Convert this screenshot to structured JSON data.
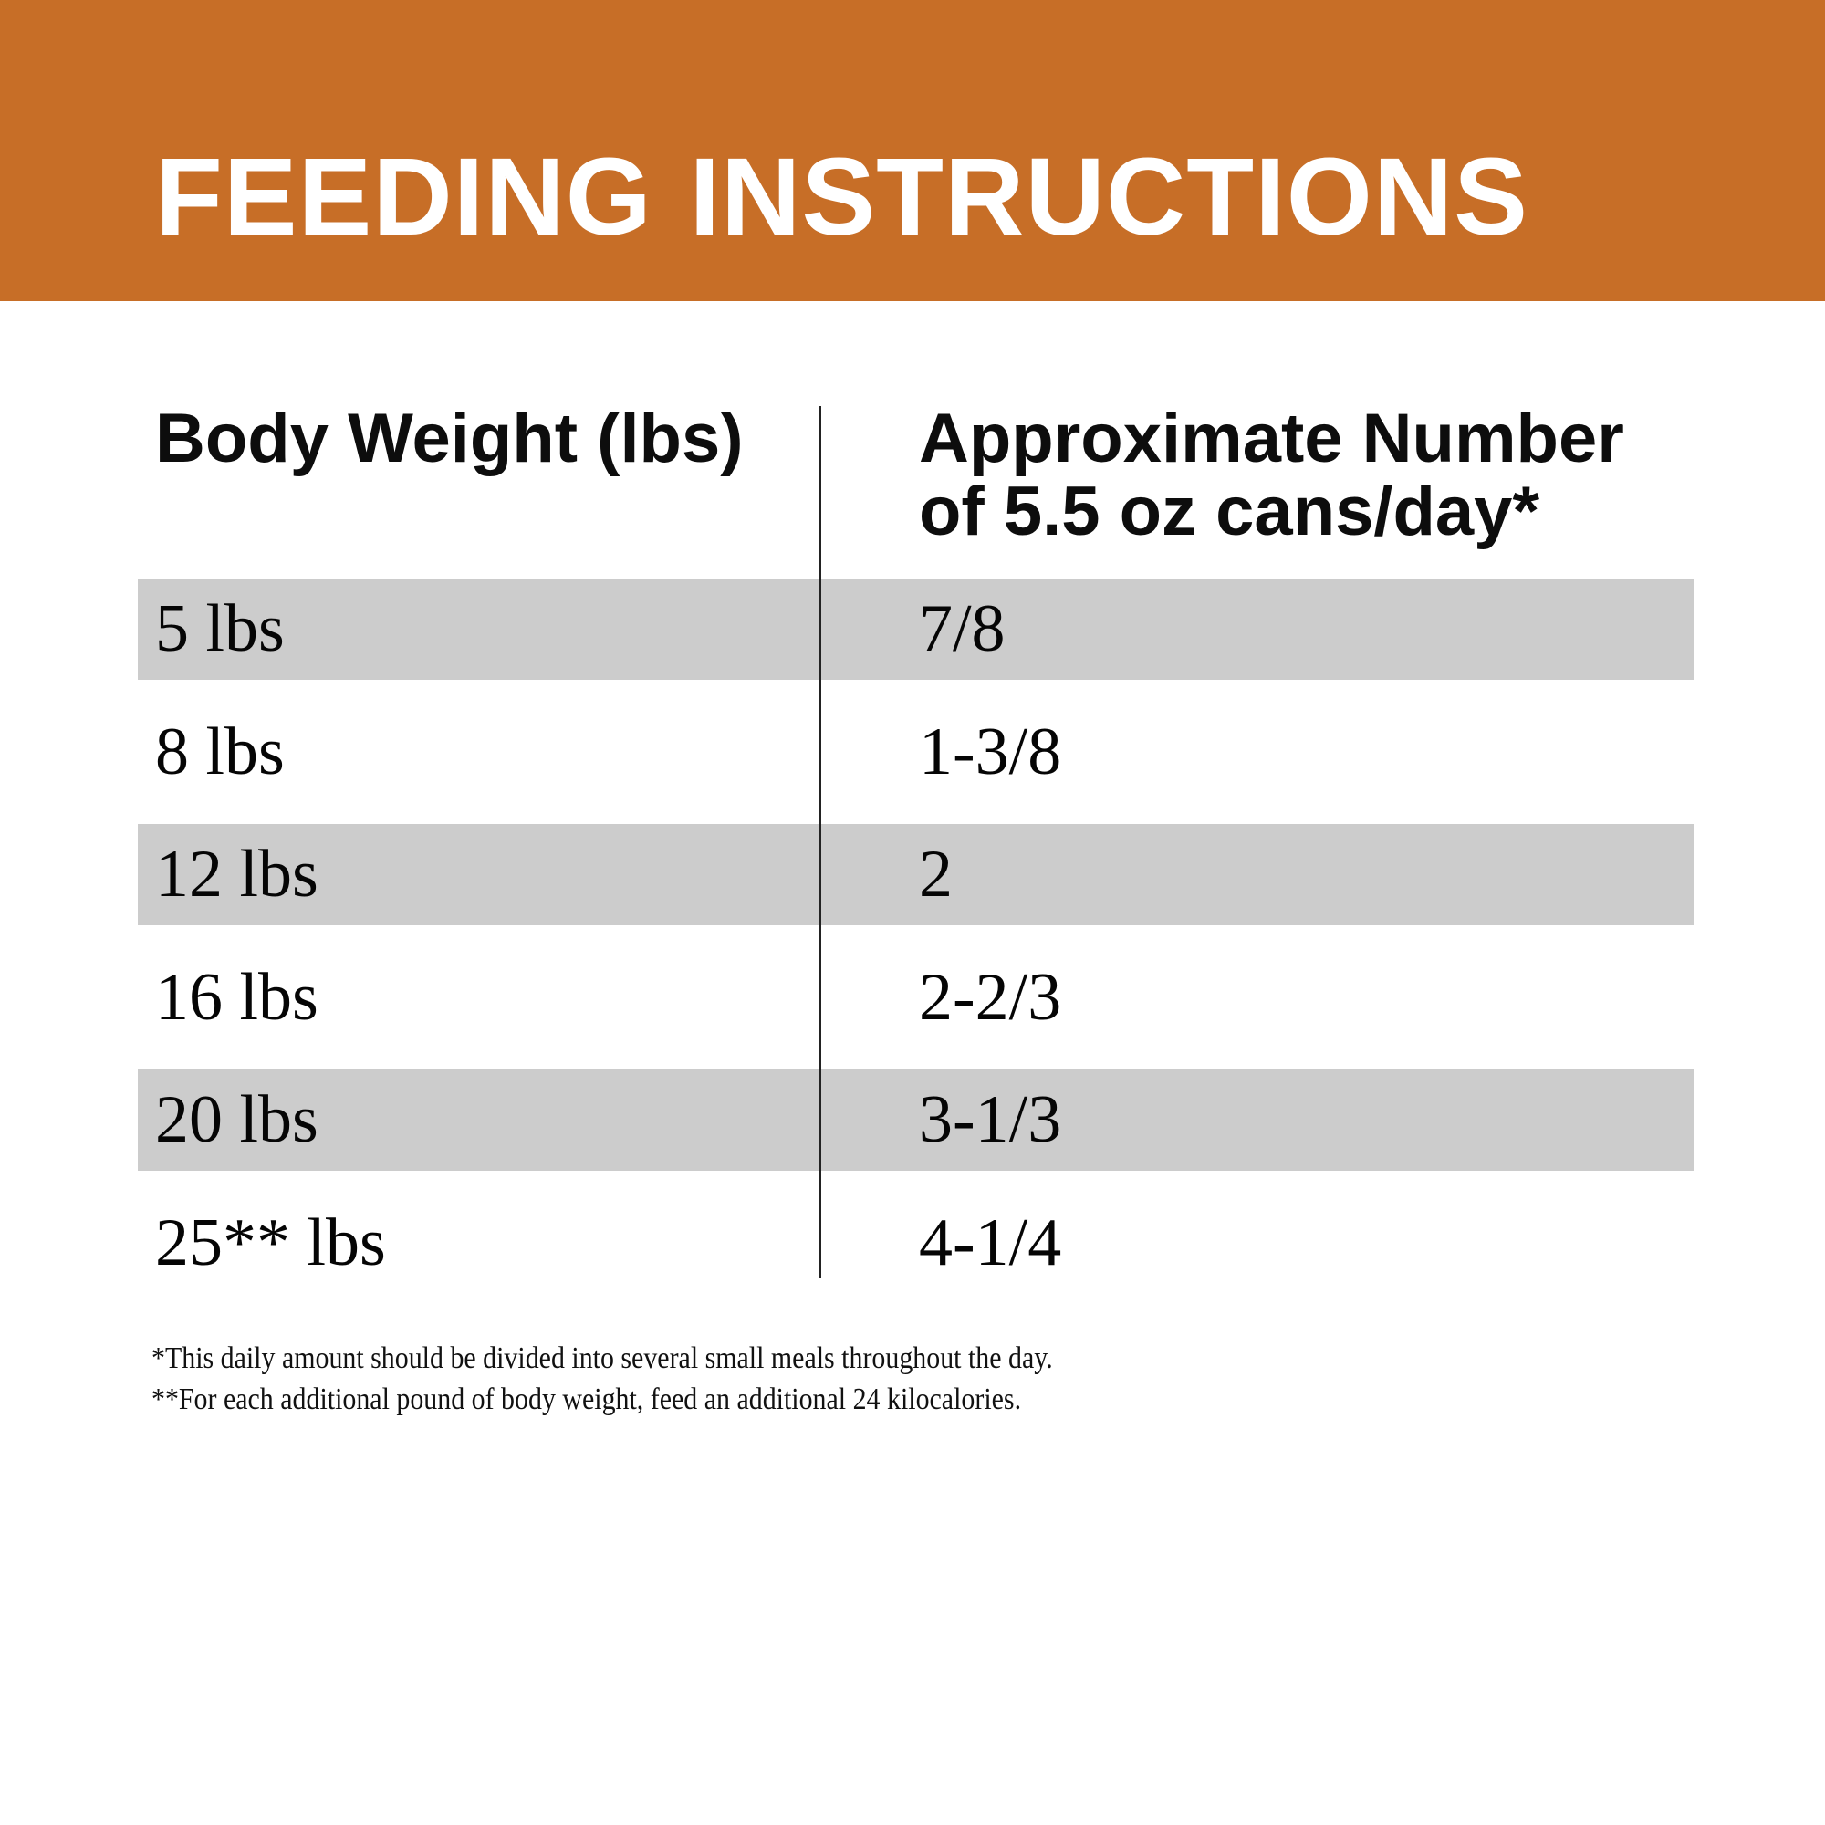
{
  "banner": {
    "title": "FEEDING INSTRUCTIONS",
    "bg_color": "#C76E27",
    "text_color": "#FFFFFF"
  },
  "table": {
    "columns": [
      {
        "header_lines": [
          "Body Weight (lbs)",
          ""
        ]
      },
      {
        "header_lines": [
          "Approximate Number",
          "of 5.5 oz cans/day*"
        ]
      }
    ],
    "rows": [
      {
        "weight": "5 lbs",
        "cans": "7/8",
        "shaded": true
      },
      {
        "weight": "8 lbs",
        "cans": "1-3/8",
        "shaded": false
      },
      {
        "weight": "12 lbs",
        "cans": "2",
        "shaded": true
      },
      {
        "weight": "16 lbs",
        "cans": "2-2/3",
        "shaded": false
      },
      {
        "weight": "20 lbs",
        "cans": "3-1/3",
        "shaded": true
      },
      {
        "weight": "25** lbs",
        "cans": "4-1/4",
        "shaded": false
      }
    ],
    "shaded_row_color": "#CCCCCC",
    "divider_color": "#222222"
  },
  "footnotes": [
    "*This daily amount should be divided into several small meals throughout the day.",
    "**For each additional pound of body weight, feed an additional 24 kilocalories."
  ]
}
